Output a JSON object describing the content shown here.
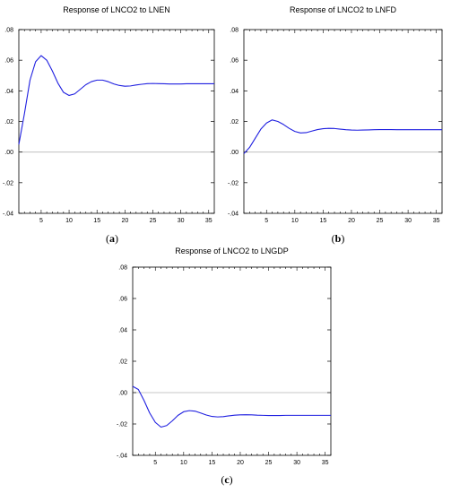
{
  "chart_data": [
    {
      "type": "line",
      "panel_label_open": "(",
      "panel_label_letter": "a",
      "panel_label_close": ")",
      "title": "Response of LNCO2 to LNEN",
      "xlim": [
        1,
        36
      ],
      "ylim": [
        -0.04,
        0.08
      ],
      "x_ticks": [
        5,
        10,
        15,
        20,
        25,
        30,
        35
      ],
      "x_tick_labels": [
        "5",
        "10",
        "15",
        "20",
        "25",
        "30",
        "35"
      ],
      "y_ticks": [
        0.08,
        0.06,
        0.04,
        0.02,
        0.0,
        -0.02,
        -0.04
      ],
      "y_tick_labels": [
        ".08",
        ".06",
        ".04",
        ".02",
        ".00",
        "-.02",
        "-.04"
      ],
      "zero_line": true,
      "series_color": "#1f1fe0",
      "x": [
        1,
        2,
        3,
        4,
        5,
        6,
        7,
        8,
        9,
        10,
        11,
        12,
        13,
        14,
        15,
        16,
        17,
        18,
        19,
        20,
        21,
        22,
        23,
        24,
        25,
        26,
        27,
        28,
        29,
        30,
        31,
        32,
        33,
        34,
        35,
        36
      ],
      "values": [
        0.005,
        0.025,
        0.047,
        0.059,
        0.063,
        0.06,
        0.053,
        0.045,
        0.039,
        0.037,
        0.038,
        0.041,
        0.044,
        0.046,
        0.047,
        0.047,
        0.046,
        0.0445,
        0.0435,
        0.043,
        0.0432,
        0.0438,
        0.0443,
        0.0447,
        0.0448,
        0.0447,
        0.0446,
        0.0445,
        0.0445,
        0.0445,
        0.0446,
        0.0446,
        0.0446,
        0.0446,
        0.0446,
        0.0446
      ]
    },
    {
      "type": "line",
      "panel_label_open": "(",
      "panel_label_letter": "b",
      "panel_label_close": ")",
      "title": "Response of LNCO2 to LNFD",
      "xlim": [
        1,
        36
      ],
      "ylim": [
        -0.04,
        0.08
      ],
      "x_ticks": [
        5,
        10,
        15,
        20,
        25,
        30,
        35
      ],
      "x_tick_labels": [
        "5",
        "10",
        "15",
        "20",
        "25",
        "30",
        "35"
      ],
      "y_ticks": [
        0.08,
        0.06,
        0.04,
        0.02,
        0.0,
        -0.02,
        -0.04
      ],
      "y_tick_labels": [
        ".08",
        ".06",
        ".04",
        ".02",
        ".00",
        "-.02",
        "-.04"
      ],
      "zero_line": true,
      "series_color": "#1f1fe0",
      "x": [
        1,
        2,
        3,
        4,
        5,
        6,
        7,
        8,
        9,
        10,
        11,
        12,
        13,
        14,
        15,
        16,
        17,
        18,
        19,
        20,
        21,
        22,
        23,
        24,
        25,
        26,
        27,
        28,
        29,
        30,
        31,
        32,
        33,
        34,
        35,
        36
      ],
      "values": [
        -0.001,
        0.003,
        0.009,
        0.015,
        0.019,
        0.021,
        0.02,
        0.018,
        0.0155,
        0.0135,
        0.0125,
        0.0127,
        0.0137,
        0.0147,
        0.0153,
        0.0155,
        0.0154,
        0.015,
        0.0146,
        0.0144,
        0.0143,
        0.0144,
        0.0145,
        0.0146,
        0.0147,
        0.0147,
        0.0147,
        0.0146,
        0.0146,
        0.0146,
        0.0146,
        0.0146,
        0.0146,
        0.0146,
        0.0146,
        0.0146
      ]
    },
    {
      "type": "line",
      "panel_label_open": "(",
      "panel_label_letter": "c",
      "panel_label_close": ")",
      "title": "Response of LNCO2 to LNGDP",
      "xlim": [
        1,
        36
      ],
      "ylim": [
        -0.04,
        0.08
      ],
      "x_ticks": [
        5,
        10,
        15,
        20,
        25,
        30,
        35
      ],
      "x_tick_labels": [
        "5",
        "10",
        "15",
        "20",
        "25",
        "30",
        "35"
      ],
      "y_ticks": [
        0.08,
        0.06,
        0.04,
        0.02,
        0.0,
        -0.02,
        -0.04
      ],
      "y_tick_labels": [
        ".08",
        ".06",
        ".04",
        ".02",
        ".00",
        "-.02",
        "-.04"
      ],
      "zero_line": true,
      "series_color": "#1f1fe0",
      "x": [
        1,
        2,
        3,
        4,
        5,
        6,
        7,
        8,
        9,
        10,
        11,
        12,
        13,
        14,
        15,
        16,
        17,
        18,
        19,
        20,
        21,
        22,
        23,
        24,
        25,
        26,
        27,
        28,
        29,
        30,
        31,
        32,
        33,
        34,
        35,
        36
      ],
      "values": [
        0.004,
        0.002,
        -0.005,
        -0.013,
        -0.019,
        -0.022,
        -0.021,
        -0.018,
        -0.0145,
        -0.0122,
        -0.0115,
        -0.0118,
        -0.013,
        -0.0143,
        -0.0152,
        -0.0155,
        -0.0153,
        -0.0148,
        -0.0144,
        -0.0142,
        -0.0141,
        -0.0142,
        -0.0144,
        -0.0145,
        -0.0146,
        -0.0146,
        -0.0146,
        -0.0145,
        -0.0145,
        -0.0145,
        -0.0145,
        -0.0145,
        -0.0145,
        -0.0145,
        -0.0145,
        -0.0145
      ]
    }
  ]
}
